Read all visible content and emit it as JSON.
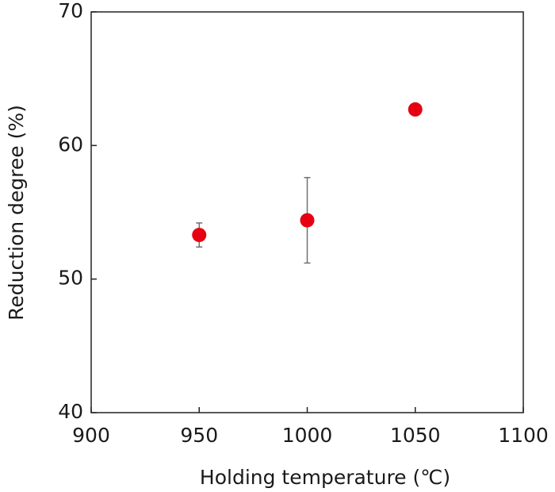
{
  "chart_data": {
    "type": "scatter",
    "x_label": "Holding temperature (℃)",
    "y_label": "Reduction degree (%)",
    "x": [
      950,
      1000,
      1050
    ],
    "values": [
      53.3,
      54.4,
      62.7
    ],
    "errors": [
      0.9,
      3.2,
      null
    ],
    "color": "#e60012",
    "error_color": "#707070",
    "xlim": [
      900,
      1100
    ],
    "xticks": [
      900,
      950,
      1000,
      1050,
      1100
    ],
    "ylim": [
      40,
      70
    ],
    "yticks": [
      40,
      50,
      60,
      70
    ]
  }
}
